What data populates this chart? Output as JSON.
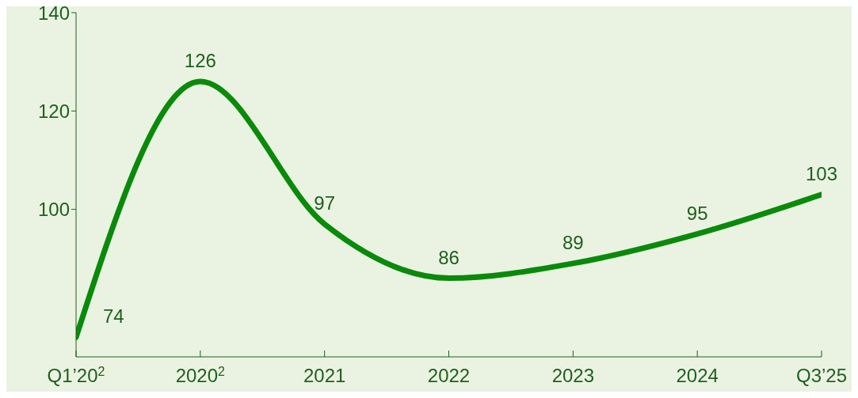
{
  "chart_data": {
    "type": "line",
    "categories": [
      "Q1’20$^{2}$",
      "2020$^{2}$",
      "2021",
      "2022",
      "2023",
      "2024",
      "Q3’25"
    ],
    "series": [
      {
        "color": "#0a8a0a",
        "values": [
          74,
          126,
          97,
          86,
          89,
          95,
          103
        ]
      }
    ],
    "ylim": [
      70,
      140
    ],
    "yticks": [
      100,
      120,
      140
    ],
    "data_labels": true,
    "marker": "none",
    "line_style": "solid"
  }
}
